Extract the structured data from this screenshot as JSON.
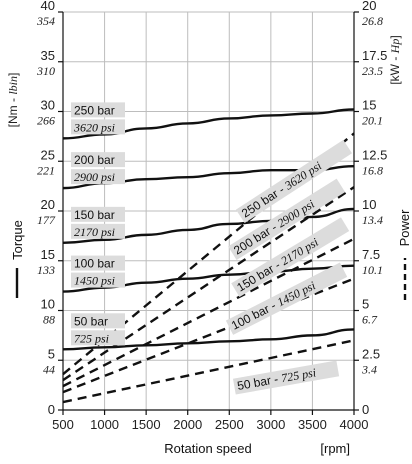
{
  "chart_data": {
    "type": "line",
    "xlabel": "Rotation speed",
    "xunit": "[rpm]",
    "x_ticks": [
      "500",
      "1000",
      "1500",
      "2000",
      "2500",
      "3000",
      "3500",
      "4000"
    ],
    "xlim": [
      500,
      4000
    ],
    "left_axis": {
      "label": "Torque",
      "unit_metric": "[Nm - ",
      "unit_imperial": "lbin",
      "unit_close": "]",
      "ylim": [
        0,
        40
      ],
      "ticks": [
        {
          "v": 0,
          "metric": "0",
          "imperial": ""
        },
        {
          "v": 5,
          "metric": "5",
          "imperial": "44"
        },
        {
          "v": 10,
          "metric": "10",
          "imperial": "88"
        },
        {
          "v": 15,
          "metric": "15",
          "imperial": "133"
        },
        {
          "v": 20,
          "metric": "20",
          "imperial": "177"
        },
        {
          "v": 25,
          "metric": "25",
          "imperial": "221"
        },
        {
          "v": 30,
          "metric": "30",
          "imperial": "266"
        },
        {
          "v": 35,
          "metric": "35",
          "imperial": "310"
        },
        {
          "v": 40,
          "metric": "40",
          "imperial": "354"
        }
      ]
    },
    "right_axis": {
      "label": "Power",
      "unit_metric": "[kW - ",
      "unit_imperial": "Hp",
      "unit_close": "]",
      "ylim": [
        0,
        20
      ],
      "ticks": [
        {
          "v": 0,
          "metric": "0",
          "imperial": ""
        },
        {
          "v": 2.5,
          "metric": "2.5",
          "imperial": "3.4"
        },
        {
          "v": 5,
          "metric": "5",
          "imperial": "6.7"
        },
        {
          "v": 7.5,
          "metric": "7.5",
          "imperial": "10.1"
        },
        {
          "v": 10,
          "metric": "10",
          "imperial": "13.4"
        },
        {
          "v": 12.5,
          "metric": "12.5",
          "imperial": "16.8"
        },
        {
          "v": 15,
          "metric": "15",
          "imperial": "20.1"
        },
        {
          "v": 17.5,
          "metric": "17.5",
          "imperial": "23.5"
        },
        {
          "v": 20,
          "metric": "20",
          "imperial": "26.8"
        }
      ]
    },
    "grid": true,
    "torque_series": [
      {
        "pressure": "250 bar",
        "psi": "3620 psi",
        "points": [
          [
            500,
            27.3
          ],
          [
            1000,
            27.7
          ],
          [
            1500,
            28.3
          ],
          [
            2000,
            28.8
          ],
          [
            2500,
            29.3
          ],
          [
            3000,
            29.6
          ],
          [
            3500,
            29.8
          ],
          [
            4000,
            30.2
          ]
        ]
      },
      {
        "pressure": "200 bar",
        "psi": "2900 psi",
        "points": [
          [
            500,
            22.3
          ],
          [
            1000,
            22.8
          ],
          [
            1500,
            23.2
          ],
          [
            2000,
            23.4
          ],
          [
            2500,
            23.8
          ],
          [
            3000,
            24.1
          ],
          [
            3500,
            24.1
          ],
          [
            4000,
            24.5
          ]
        ]
      },
      {
        "pressure": "150 bar",
        "psi": "2170 psi",
        "points": [
          [
            500,
            16.8
          ],
          [
            1000,
            17.1
          ],
          [
            1500,
            17.6
          ],
          [
            2000,
            18.1
          ],
          [
            2500,
            18.7
          ],
          [
            3000,
            19.0
          ],
          [
            3500,
            19.4
          ],
          [
            4000,
            20.2
          ]
        ]
      },
      {
        "pressure": "100 bar",
        "psi": "1450 psi",
        "points": [
          [
            500,
            11.9
          ],
          [
            1000,
            12.3
          ],
          [
            1500,
            12.8
          ],
          [
            2000,
            13.2
          ],
          [
            2500,
            13.6
          ],
          [
            3000,
            13.9
          ],
          [
            3500,
            14.2
          ],
          [
            4000,
            14.5
          ]
        ]
      },
      {
        "pressure": "50 bar",
        "psi": "725 psi",
        "points": [
          [
            500,
            6.1
          ],
          [
            1000,
            6.3
          ],
          [
            1500,
            6.5
          ],
          [
            2000,
            6.7
          ],
          [
            2500,
            6.9
          ],
          [
            3000,
            7.1
          ],
          [
            3500,
            7.5
          ],
          [
            4000,
            8.1
          ]
        ]
      }
    ],
    "power_series": [
      {
        "label_main": "250 bar - ",
        "label_psi": "3620 psi",
        "points": [
          [
            500,
            1.8
          ],
          [
            4000,
            13.9
          ]
        ]
      },
      {
        "label_main": "200 bar - ",
        "label_psi": "2900 psi",
        "points": [
          [
            500,
            1.5
          ],
          [
            4000,
            11.2
          ]
        ]
      },
      {
        "label_main": "150 bar - ",
        "label_psi": "2170 psi",
        "points": [
          [
            500,
            1.2
          ],
          [
            4000,
            8.6
          ]
        ]
      },
      {
        "label_main": "100 bar - ",
        "label_psi": "1450 psi",
        "points": [
          [
            500,
            0.9
          ],
          [
            4000,
            6.6
          ]
        ]
      },
      {
        "label_main": "50 bar - ",
        "label_psi": "725 psi",
        "points": [
          [
            500,
            0.4
          ],
          [
            4000,
            3.5
          ]
        ]
      }
    ]
  }
}
